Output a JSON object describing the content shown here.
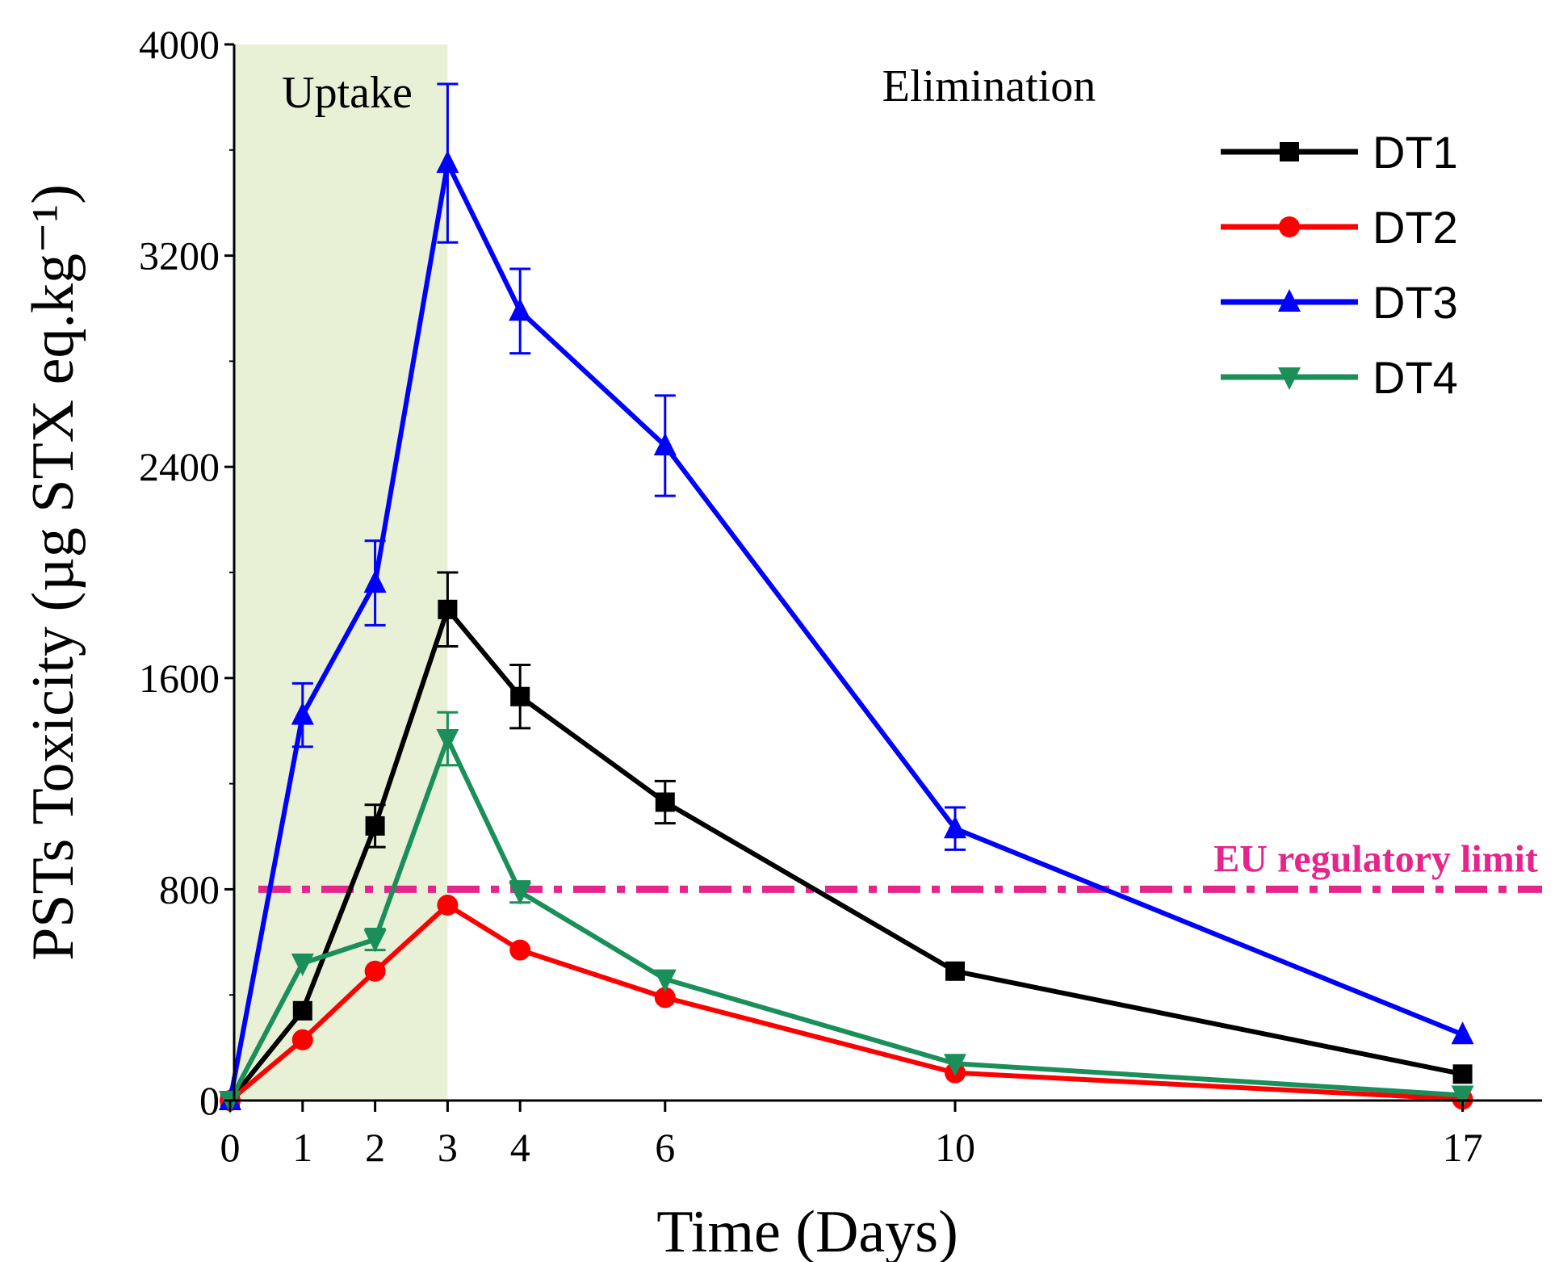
{
  "chart_data": {
    "type": "line",
    "xlabel": "Time (Days)",
    "ylabel": "PSTs Toxicity (µg STX eq.kg⁻¹)",
    "x_ticks": [
      0,
      1,
      2,
      3,
      4,
      6,
      10,
      17
    ],
    "y_ticks": [
      0,
      800,
      1600,
      2400,
      3200,
      4000
    ],
    "ylim": [
      0,
      4000
    ],
    "regions": [
      {
        "label": "Uptake",
        "x_start": 0,
        "x_end": 3,
        "color": "#e8f0d6"
      },
      {
        "label": "Elimination",
        "x_start": 3,
        "x_end": 17
      }
    ],
    "reference_line": {
      "label": "EU regulatory limit",
      "value": 800,
      "color": "#e6248c"
    },
    "legend_position": "top-right",
    "series": [
      {
        "name": "DT1",
        "color": "#000000",
        "marker": "square",
        "points": [
          {
            "x": 0,
            "y": 0,
            "err": 0
          },
          {
            "x": 1,
            "y": 340,
            "err": 0
          },
          {
            "x": 2,
            "y": 1040,
            "err": 80
          },
          {
            "x": 3,
            "y": 1860,
            "err": 140
          },
          {
            "x": 4,
            "y": 1530,
            "err": 120
          },
          {
            "x": 6,
            "y": 1130,
            "err": 80
          },
          {
            "x": 10,
            "y": 490,
            "err": 0
          },
          {
            "x": 17,
            "y": 100,
            "err": 0
          }
        ]
      },
      {
        "name": "DT2",
        "color": "#ff0000",
        "marker": "circle",
        "points": [
          {
            "x": 0,
            "y": 0,
            "err": 0
          },
          {
            "x": 1,
            "y": 230,
            "err": 0
          },
          {
            "x": 2,
            "y": 490,
            "err": 0
          },
          {
            "x": 3,
            "y": 740,
            "err": 0
          },
          {
            "x": 4,
            "y": 570,
            "err": 0
          },
          {
            "x": 6,
            "y": 390,
            "err": 0
          },
          {
            "x": 10,
            "y": 105,
            "err": 0
          },
          {
            "x": 17,
            "y": 5,
            "err": 0
          }
        ]
      },
      {
        "name": "DT3",
        "color": "#0000ff",
        "marker": "triangle-up",
        "points": [
          {
            "x": 0,
            "y": 0,
            "err": 0
          },
          {
            "x": 1,
            "y": 1460,
            "err": 120
          },
          {
            "x": 2,
            "y": 1960,
            "err": 160
          },
          {
            "x": 3,
            "y": 3550,
            "err": 300
          },
          {
            "x": 4,
            "y": 2990,
            "err": 160
          },
          {
            "x": 6,
            "y": 2480,
            "err": 190
          },
          {
            "x": 10,
            "y": 1030,
            "err": 80
          },
          {
            "x": 17,
            "y": 250,
            "err": 0
          }
        ]
      },
      {
        "name": "DT4",
        "color": "#1a8f5a",
        "marker": "triangle-down",
        "points": [
          {
            "x": 0,
            "y": 0,
            "err": 0
          },
          {
            "x": 1,
            "y": 520,
            "err": 0
          },
          {
            "x": 2,
            "y": 610,
            "err": 40
          },
          {
            "x": 3,
            "y": 1370,
            "err": 100
          },
          {
            "x": 4,
            "y": 790,
            "err": 40
          },
          {
            "x": 6,
            "y": 460,
            "err": 0
          },
          {
            "x": 10,
            "y": 140,
            "err": 0
          },
          {
            "x": 17,
            "y": 20,
            "err": 0
          }
        ]
      }
    ]
  }
}
